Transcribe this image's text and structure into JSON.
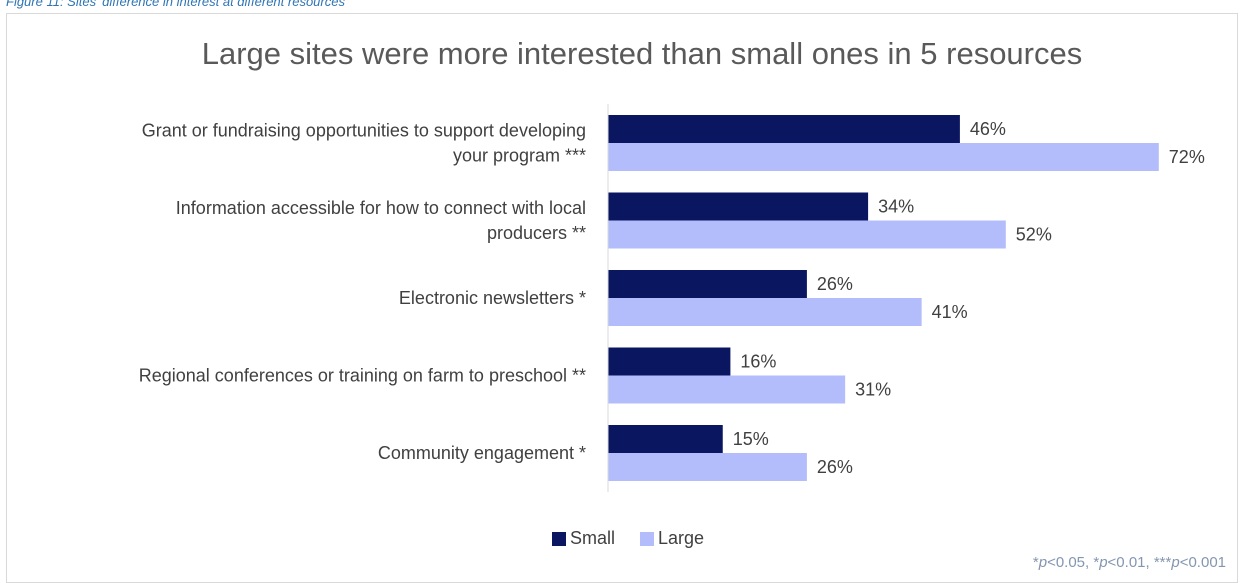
{
  "caption": "Figure 11: Sites' difference in interest at different resources",
  "footnote": {
    "parts": [
      {
        "text": "*",
        "italic": false
      },
      {
        "text": "p",
        "italic": true
      },
      {
        "text": "<0.05, *",
        "italic": false
      },
      {
        "text": "p",
        "italic": true
      },
      {
        "text": "<0.01, ***",
        "italic": false
      },
      {
        "text": "p",
        "italic": true
      },
      {
        "text": "<0.001",
        "italic": false
      }
    ]
  },
  "chart_data": {
    "type": "bar",
    "orientation": "horizontal",
    "title": "Large sites were more interested than small ones in 5 resources",
    "categories": [
      [
        "Grant or fundraising opportunities to support developing",
        "your program  ***"
      ],
      [
        "Information accessible for how to connect with local",
        "producers  **"
      ],
      [
        "Electronic newsletters  *"
      ],
      [
        "Regional conferences or training on farm to preschool  **"
      ],
      [
        "Community engagement  *"
      ]
    ],
    "series": [
      {
        "name": "Small",
        "color": "#0b1660",
        "values": [
          46,
          34,
          26,
          16,
          15
        ],
        "labels": [
          "46%",
          "34%",
          "26%",
          "16%",
          "15%"
        ]
      },
      {
        "name": "Large",
        "color": "#b3bdfb",
        "values": [
          72,
          52,
          41,
          31,
          26
        ],
        "labels": [
          "72%",
          "52%",
          "41%",
          "31%",
          "26%"
        ]
      }
    ],
    "xlim": [
      0,
      100
    ],
    "unit": "%",
    "grid": false,
    "legend_position": "bottom"
  }
}
